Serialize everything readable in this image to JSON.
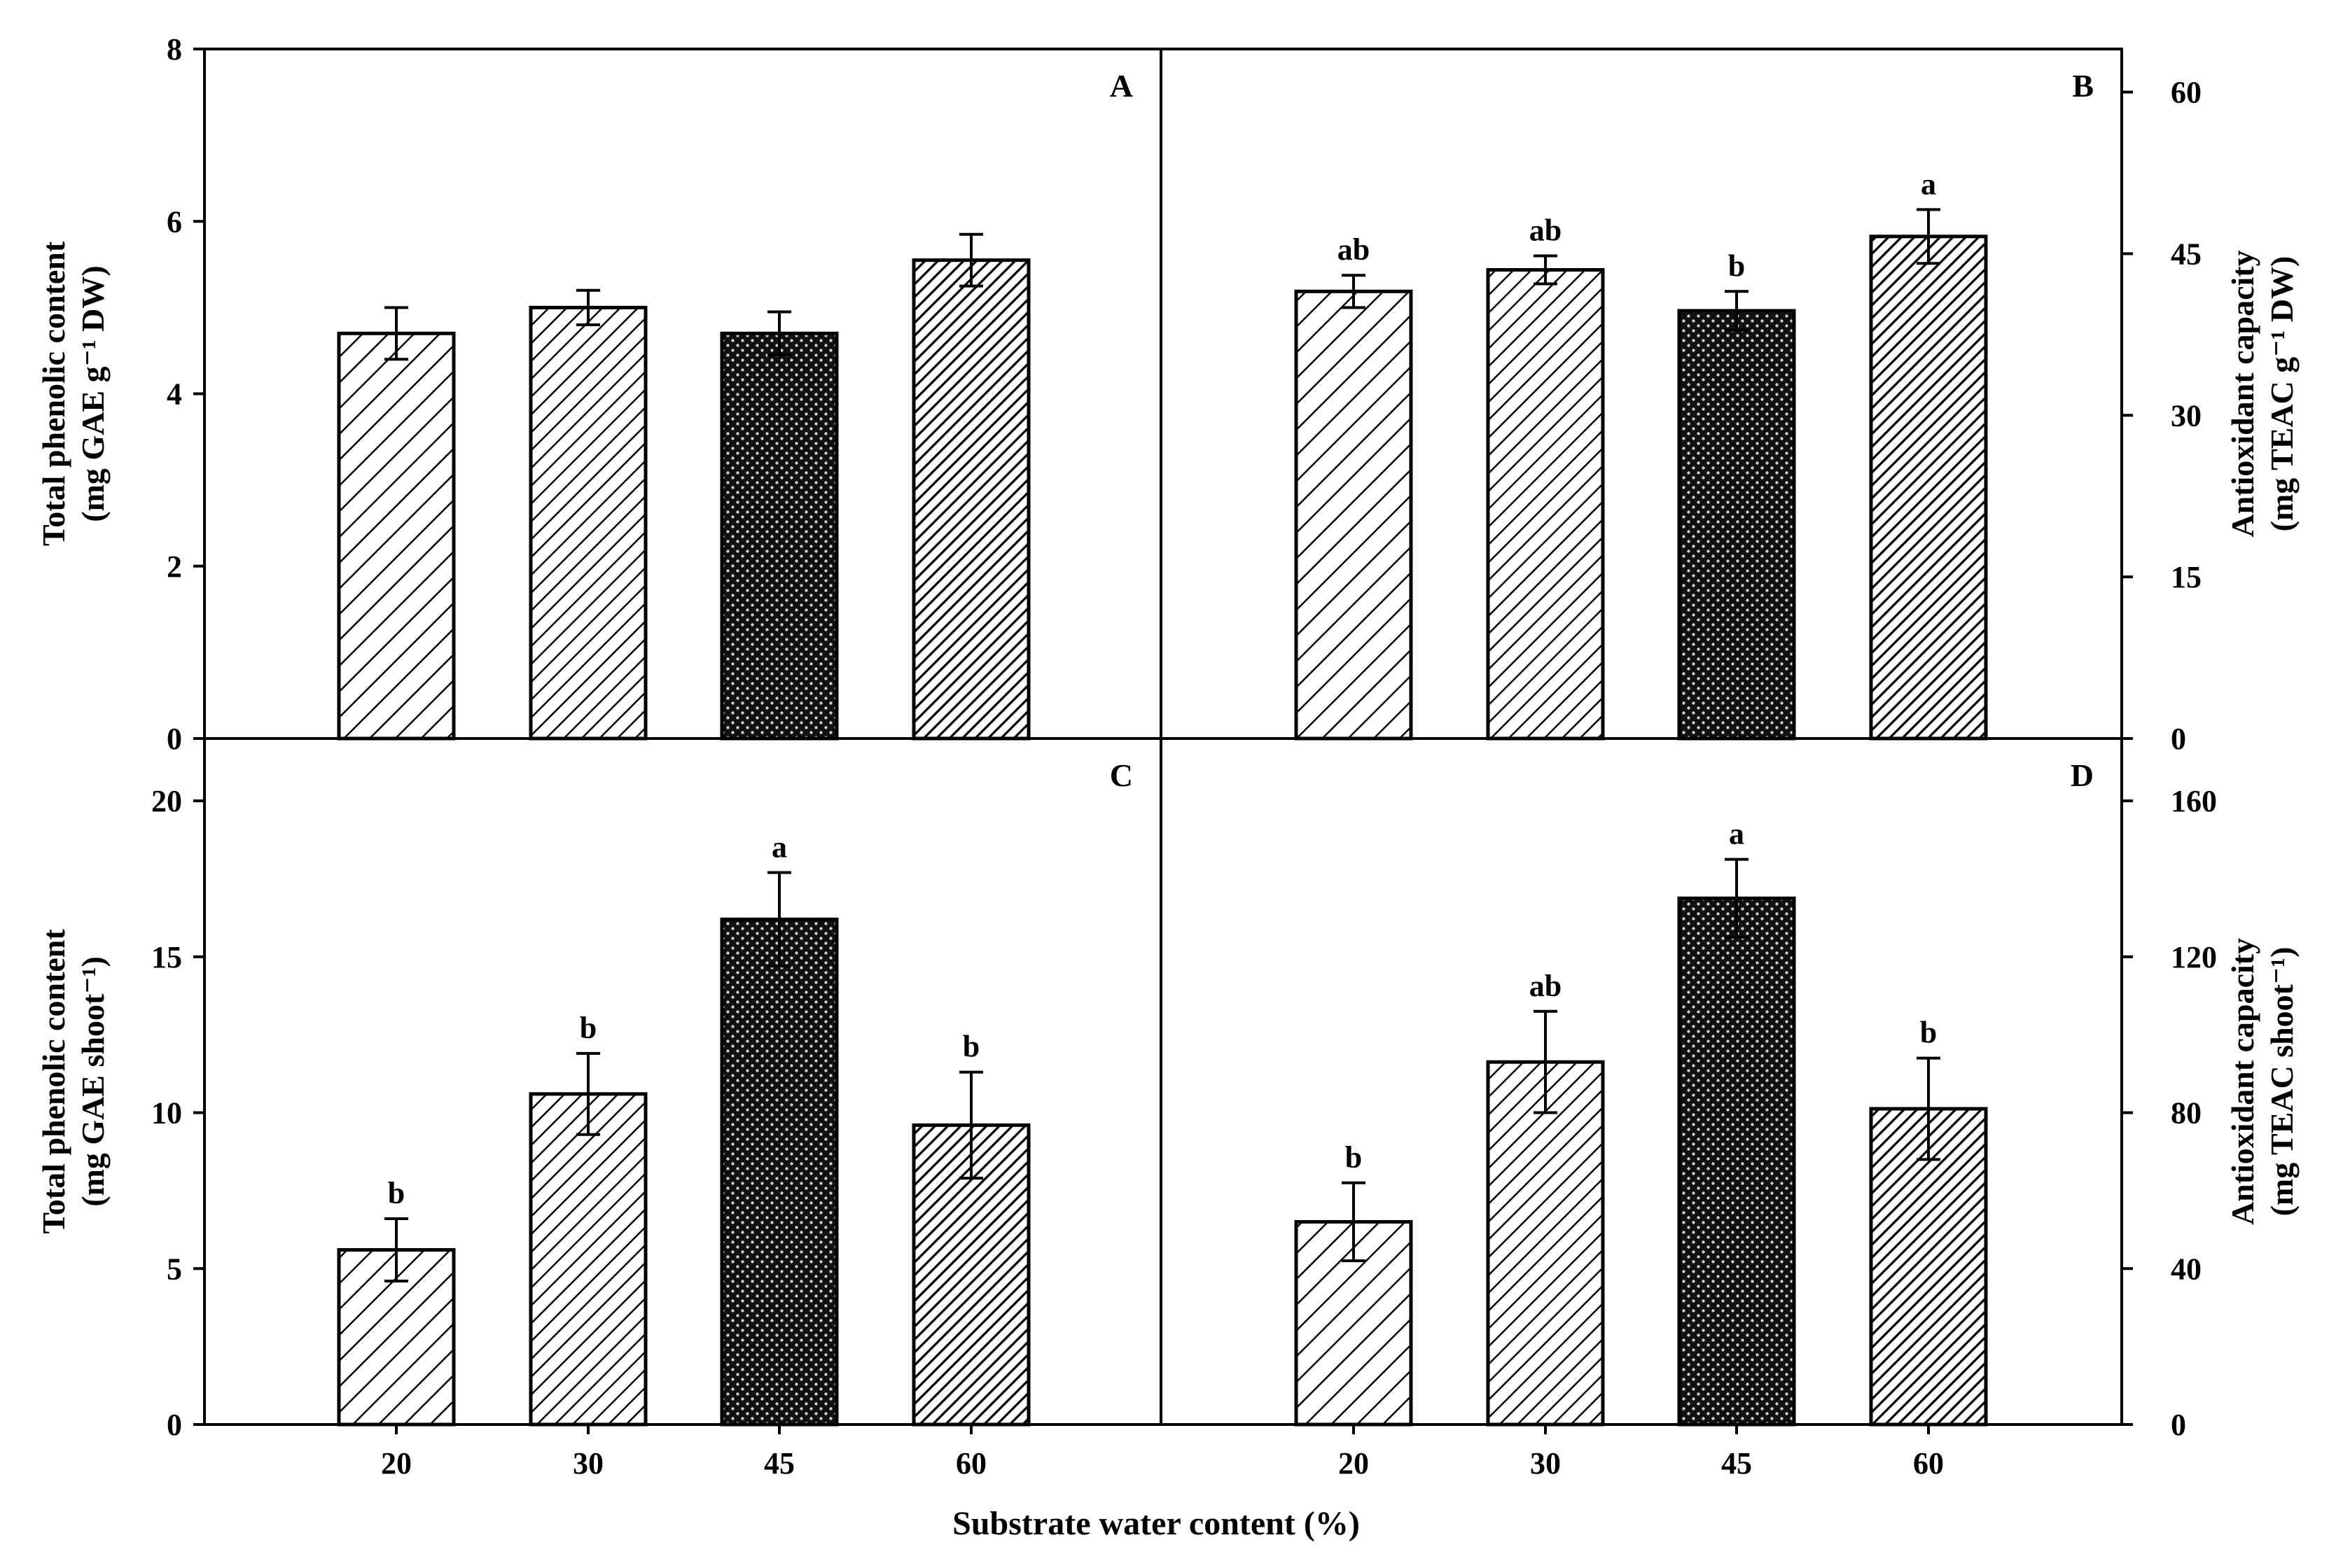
{
  "chart_data": [
    {
      "panel": "A",
      "type": "bar",
      "categories": [
        "20",
        "30",
        "45",
        "60"
      ],
      "values": [
        4.7,
        5.0,
        4.7,
        5.55
      ],
      "errors": [
        0.3,
        0.2,
        0.25,
        0.3
      ],
      "sig_labels": [
        "",
        "",
        "",
        ""
      ],
      "ylabel_line1": "Total phenolic content",
      "ylabel_line2": "(mg GAE g⁻¹ DW)",
      "ylim": [
        0,
        8
      ],
      "yticks": [
        0,
        2,
        4,
        6,
        8
      ],
      "yaxis_side": "left"
    },
    {
      "panel": "B",
      "type": "bar",
      "categories": [
        "20",
        "30",
        "45",
        "60"
      ],
      "values": [
        41.5,
        43.5,
        39.7,
        46.6
      ],
      "errors": [
        1.5,
        1.3,
        1.8,
        2.5
      ],
      "sig_labels": [
        "ab",
        "ab",
        "b",
        "a"
      ],
      "ylabel_line1": "Antioxidant capacity",
      "ylabel_line2": "(mg TEAC g⁻¹ DW)",
      "ylim": [
        0,
        64
      ],
      "yticks": [
        0,
        15,
        30,
        45,
        60
      ],
      "yaxis_side": "right"
    },
    {
      "panel": "C",
      "type": "bar",
      "categories": [
        "20",
        "30",
        "45",
        "60"
      ],
      "values": [
        5.6,
        10.6,
        16.2,
        9.6
      ],
      "errors": [
        1.0,
        1.3,
        1.5,
        1.7
      ],
      "sig_labels": [
        "b",
        "b",
        "a",
        "b"
      ],
      "ylabel_line1": "Total phenolic content",
      "ylabel_line2": "(mg GAE shoot⁻¹)",
      "ylim": [
        0,
        22
      ],
      "yticks": [
        0,
        5,
        10,
        15,
        20
      ],
      "yaxis_side": "left"
    },
    {
      "panel": "D",
      "type": "bar",
      "categories": [
        "20",
        "30",
        "45",
        "60"
      ],
      "values": [
        52,
        93,
        135,
        81
      ],
      "errors": [
        10,
        13,
        10,
        13
      ],
      "sig_labels": [
        "b",
        "ab",
        "a",
        "b"
      ],
      "ylabel_line1": "Antioxidant capacity",
      "ylabel_line2": "(mg TEAC shoot⁻¹)",
      "ylim": [
        0,
        176
      ],
      "yticks": [
        0,
        40,
        80,
        120,
        160
      ],
      "yaxis_side": "right"
    }
  ],
  "xlabel": "Substrate water content (%)",
  "bar_patterns": [
    "hatch-light",
    "hatch-medium",
    "dots-dark",
    "hatch-dense"
  ]
}
